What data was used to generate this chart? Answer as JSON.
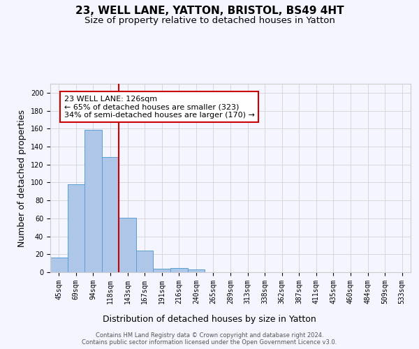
{
  "title1": "23, WELL LANE, YATTON, BRISTOL, BS49 4HT",
  "title2": "Size of property relative to detached houses in Yatton",
  "xlabel": "Distribution of detached houses by size in Yatton",
  "ylabel": "Number of detached properties",
  "bar_labels": [
    "45sqm",
    "69sqm",
    "94sqm",
    "118sqm",
    "143sqm",
    "167sqm",
    "191sqm",
    "216sqm",
    "240sqm",
    "265sqm",
    "289sqm",
    "313sqm",
    "338sqm",
    "362sqm",
    "387sqm",
    "411sqm",
    "435sqm",
    "460sqm",
    "484sqm",
    "509sqm",
    "533sqm"
  ],
  "bar_values": [
    16,
    98,
    159,
    128,
    61,
    24,
    4,
    5,
    3,
    0,
    0,
    0,
    0,
    0,
    0,
    0,
    0,
    0,
    0,
    0,
    0
  ],
  "bar_color": "#aec6e8",
  "bar_edgecolor": "#5a9fd4",
  "vline_x": 3.5,
  "vline_color": "#cc0000",
  "annotation_text": "23 WELL LANE: 126sqm\n← 65% of detached houses are smaller (323)\n34% of semi-detached houses are larger (170) →",
  "annotation_box_color": "#ffffff",
  "annotation_box_edgecolor": "#cc0000",
  "ylim": [
    0,
    210
  ],
  "yticks": [
    0,
    20,
    40,
    60,
    80,
    100,
    120,
    140,
    160,
    180,
    200
  ],
  "grid_color": "#cccccc",
  "background_color": "#f5f5ff",
  "footer_text": "Contains HM Land Registry data © Crown copyright and database right 2024.\nContains public sector information licensed under the Open Government Licence v3.0.",
  "title1_fontsize": 11,
  "title2_fontsize": 9.5,
  "xlabel_fontsize": 9,
  "ylabel_fontsize": 9,
  "tick_fontsize": 7,
  "annotation_fontsize": 8,
  "footer_fontsize": 6
}
